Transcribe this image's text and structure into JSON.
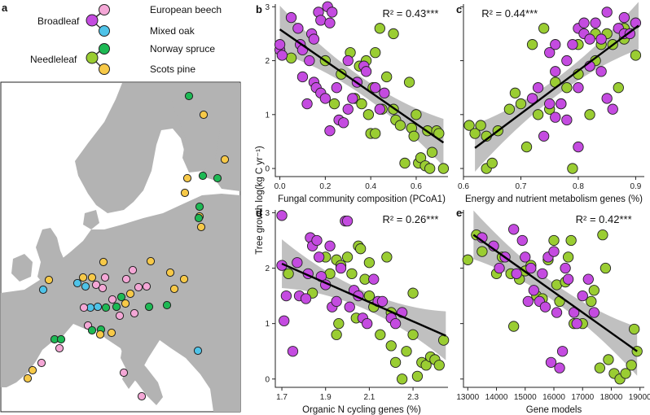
{
  "colors": {
    "european_beech": "#f4a7d6",
    "mixed_oak": "#4fc3e8",
    "norway_spruce": "#1db954",
    "scots_pine": "#f7c948",
    "purple_points": "#c44be0",
    "green_points": "#9acd32",
    "land": "#b3b3b3",
    "sea": "#ffffff",
    "ci_band": "#8c8c8c",
    "fit_line": "#000000"
  },
  "panel_a": {
    "label": "a",
    "legend": {
      "broadleaf": "Broadleaf",
      "needleleaf": "Needleleaf",
      "species": [
        "European beech",
        "Mixed oak",
        "Norway spruce",
        "Scots pine"
      ]
    }
  },
  "shared": {
    "ylabel": "Tree growth log(kg C yr⁻¹)"
  },
  "chart_data": [
    {
      "panel": "b",
      "type": "scatter",
      "xlabel": "Fungal community composition (PCoA1)",
      "r2_text": "R² = 0.43***",
      "xlim": [
        -0.02,
        0.74
      ],
      "ylim": [
        -0.15,
        3.05
      ],
      "xticks": [
        "0.0",
        "0.2",
        "0.4",
        "0.6"
      ],
      "xtick_vals": [
        0.0,
        0.2,
        0.4,
        0.6
      ],
      "yticks": [
        "0",
        "1",
        "2",
        "3"
      ],
      "ytick_vals": [
        0,
        1,
        2,
        3
      ],
      "fit": {
        "x": [
          0.0,
          0.72
        ],
        "y": [
          2.58,
          0.48
        ]
      },
      "points_purple": [
        [
          0.0,
          2.2
        ],
        [
          0.0,
          2.3
        ],
        [
          0.01,
          2.1
        ],
        [
          0.05,
          2.8
        ],
        [
          0.08,
          2.6
        ],
        [
          0.09,
          2.3
        ],
        [
          0.1,
          2.2
        ],
        [
          0.1,
          1.7
        ],
        [
          0.12,
          1.2
        ],
        [
          0.13,
          2.0
        ],
        [
          0.14,
          2.5
        ],
        [
          0.15,
          2.4
        ],
        [
          0.15,
          1.6
        ],
        [
          0.16,
          1.5
        ],
        [
          0.17,
          2.9
        ],
        [
          0.18,
          2.75
        ],
        [
          0.18,
          1.4
        ],
        [
          0.2,
          1.3
        ],
        [
          0.21,
          3.0
        ],
        [
          0.22,
          2.7
        ],
        [
          0.23,
          2.9
        ],
        [
          0.22,
          0.7
        ],
        [
          0.25,
          1.5
        ],
        [
          0.26,
          0.9
        ],
        [
          0.28,
          0.85
        ],
        [
          0.3,
          2.0
        ],
        [
          0.3,
          1.1
        ],
        [
          0.32,
          1.3
        ],
        [
          0.34,
          1.6
        ],
        [
          0.37,
          1.9
        ],
        [
          0.38,
          1.8
        ],
        [
          0.42,
          1.5
        ],
        [
          0.44,
          1.1
        ],
        [
          0.46,
          1.4
        ]
      ],
      "points_green": [
        [
          0.05,
          2.05
        ],
        [
          0.2,
          2.0
        ],
        [
          0.24,
          1.2
        ],
        [
          0.27,
          1.75
        ],
        [
          0.31,
          2.15
        ],
        [
          0.33,
          1.3
        ],
        [
          0.35,
          1.9
        ],
        [
          0.36,
          1.2
        ],
        [
          0.38,
          2.0
        ],
        [
          0.39,
          1.0
        ],
        [
          0.4,
          0.65
        ],
        [
          0.41,
          1.5
        ],
        [
          0.42,
          2.15
        ],
        [
          0.42,
          0.65
        ],
        [
          0.44,
          2.6
        ],
        [
          0.45,
          1.1
        ],
        [
          0.47,
          1.7
        ],
        [
          0.5,
          2.5
        ],
        [
          0.5,
          1.1
        ],
        [
          0.51,
          0.9
        ],
        [
          0.53,
          0.8
        ],
        [
          0.55,
          0.1
        ],
        [
          0.57,
          1.6
        ],
        [
          0.58,
          0.75
        ],
        [
          0.59,
          0.6
        ],
        [
          0.6,
          1.0
        ],
        [
          0.61,
          0.1
        ],
        [
          0.62,
          0.2
        ],
        [
          0.64,
          0.05
        ],
        [
          0.65,
          0.7
        ],
        [
          0.66,
          0.0
        ],
        [
          0.67,
          0.3
        ],
        [
          0.69,
          0.7
        ],
        [
          0.7,
          0.65
        ],
        [
          0.72,
          0.0
        ]
      ]
    },
    {
      "panel": "c",
      "type": "scatter",
      "xlabel": "Energy and nutrient metabolism genes (%)",
      "r2_text": "R² = 0.44***",
      "xlim": [
        0.6,
        0.915
      ],
      "ylim": [
        -0.15,
        3.05
      ],
      "xticks": [
        "0.6",
        "0.7",
        "0.8",
        "0.9"
      ],
      "xtick_vals": [
        0.6,
        0.7,
        0.8,
        0.9
      ],
      "yticks": [],
      "ytick_vals": [
        0,
        1,
        2,
        3
      ],
      "fit": {
        "x": [
          0.62,
          0.905
        ],
        "y": [
          0.38,
          2.65
        ]
      },
      "points_purple": [
        [
          0.72,
          1.3
        ],
        [
          0.73,
          1.5
        ],
        [
          0.74,
          0.6
        ],
        [
          0.75,
          1.2
        ],
        [
          0.75,
          2.15
        ],
        [
          0.76,
          0.95
        ],
        [
          0.76,
          1.8
        ],
        [
          0.76,
          2.3
        ],
        [
          0.77,
          1.2
        ],
        [
          0.78,
          2.0
        ],
        [
          0.78,
          0.9
        ],
        [
          0.79,
          2.3
        ],
        [
          0.8,
          1.5
        ],
        [
          0.8,
          0.4
        ],
        [
          0.8,
          2.6
        ],
        [
          0.81,
          2.7
        ],
        [
          0.81,
          2.5
        ],
        [
          0.82,
          2.4
        ],
        [
          0.82,
          1.9
        ],
        [
          0.83,
          2.7
        ],
        [
          0.84,
          1.8
        ],
        [
          0.84,
          2.4
        ],
        [
          0.85,
          2.9
        ],
        [
          0.85,
          1.3
        ],
        [
          0.86,
          1.1
        ],
        [
          0.87,
          2.6
        ],
        [
          0.88,
          2.5
        ],
        [
          0.88,
          2.8
        ],
        [
          0.89,
          2.5
        ],
        [
          0.9,
          2.7
        ]
      ],
      "points_green": [
        [
          0.61,
          0.8
        ],
        [
          0.62,
          0.65
        ],
        [
          0.63,
          0.8
        ],
        [
          0.64,
          0.0
        ],
        [
          0.64,
          0.6
        ],
        [
          0.65,
          0.1
        ],
        [
          0.66,
          0.7
        ],
        [
          0.68,
          1.1
        ],
        [
          0.69,
          1.4
        ],
        [
          0.7,
          1.2
        ],
        [
          0.71,
          0.4
        ],
        [
          0.72,
          2.3
        ],
        [
          0.73,
          1.0
        ],
        [
          0.74,
          2.6
        ],
        [
          0.75,
          1.1
        ],
        [
          0.76,
          1.6
        ],
        [
          0.77,
          1.2
        ],
        [
          0.78,
          1.5
        ],
        [
          0.79,
          0.0
        ],
        [
          0.8,
          1.75
        ],
        [
          0.8,
          2.3
        ],
        [
          0.82,
          1.0
        ],
        [
          0.83,
          2.5
        ],
        [
          0.83,
          2.0
        ],
        [
          0.84,
          2.3
        ],
        [
          0.85,
          2.5
        ],
        [
          0.86,
          2.3
        ],
        [
          0.87,
          1.5
        ],
        [
          0.88,
          2.6
        ],
        [
          0.88,
          2.4
        ],
        [
          0.9,
          2.1
        ]
      ]
    },
    {
      "panel": "d",
      "type": "scatter",
      "xlabel": "Organic N cycling genes (%)",
      "r2_text": "R² = 0.26***",
      "xlim": [
        1.67,
        2.46
      ],
      "ylim": [
        -0.15,
        3.05
      ],
      "xticks": [
        "1.7",
        "1.9",
        "2.1",
        "2.3"
      ],
      "xtick_vals": [
        1.7,
        1.9,
        2.1,
        2.3
      ],
      "yticks": [
        "0",
        "1",
        "2",
        "3"
      ],
      "ytick_vals": [
        0,
        1,
        2,
        3
      ],
      "fit": {
        "x": [
          1.7,
          2.45
        ],
        "y": [
          2.08,
          0.78
        ]
      },
      "points_purple": [
        [
          1.7,
          2.95
        ],
        [
          1.7,
          2.05
        ],
        [
          1.71,
          1.05
        ],
        [
          1.72,
          1.5
        ],
        [
          1.75,
          0.5
        ],
        [
          1.77,
          2.1
        ],
        [
          1.78,
          1.5
        ],
        [
          1.81,
          1.45
        ],
        [
          1.82,
          1.9
        ],
        [
          1.83,
          2.55
        ],
        [
          1.84,
          2.4
        ],
        [
          1.86,
          2.5
        ],
        [
          1.87,
          2.2
        ],
        [
          1.88,
          1.85
        ],
        [
          1.9,
          1.7
        ],
        [
          1.92,
          2.4
        ],
        [
          1.93,
          1.3
        ],
        [
          1.95,
          1.4
        ],
        [
          1.97,
          2.0
        ],
        [
          1.99,
          2.85
        ],
        [
          2.0,
          2.85
        ],
        [
          2.01,
          1.3
        ],
        [
          2.03,
          1.6
        ],
        [
          2.05,
          1.5
        ],
        [
          2.07,
          1.1
        ],
        [
          2.09,
          1.0
        ],
        [
          2.12,
          1.8
        ],
        [
          2.14,
          1.4
        ],
        [
          2.16,
          1.4
        ],
        [
          2.2,
          1.1
        ],
        [
          2.22,
          1.0
        ],
        [
          2.25,
          1.2
        ]
      ],
      "points_green": [
        [
          1.73,
          1.9
        ],
        [
          1.84,
          1.55
        ],
        [
          1.9,
          2.2
        ],
        [
          1.92,
          1.9
        ],
        [
          1.95,
          2.15
        ],
        [
          1.95,
          0.8
        ],
        [
          1.96,
          1.0
        ],
        [
          1.97,
          2.05
        ],
        [
          2.0,
          2.2
        ],
        [
          2.02,
          1.9
        ],
        [
          2.04,
          1.1
        ],
        [
          2.05,
          2.4
        ],
        [
          2.06,
          2.35
        ],
        [
          2.08,
          1.8
        ],
        [
          2.1,
          1.5
        ],
        [
          2.1,
          2.1
        ],
        [
          2.12,
          1.3
        ],
        [
          2.15,
          0.8
        ],
        [
          2.18,
          2.2
        ],
        [
          2.2,
          0.6
        ],
        [
          2.2,
          1.2
        ],
        [
          2.22,
          0.3
        ],
        [
          2.25,
          0.0
        ],
        [
          2.27,
          0.5
        ],
        [
          2.3,
          0.8
        ],
        [
          2.3,
          1.55
        ],
        [
          2.32,
          0.05
        ],
        [
          2.34,
          0.3
        ],
        [
          2.36,
          0.25
        ],
        [
          2.38,
          0.4
        ],
        [
          2.4,
          0.35
        ],
        [
          2.42,
          0.25
        ],
        [
          2.44,
          0.7
        ]
      ]
    },
    {
      "panel": "e",
      "type": "scatter",
      "xlabel": "Gene models",
      "r2_text": "R² = 0.42***",
      "xlim": [
        12850,
        19150
      ],
      "ylim": [
        -0.15,
        3.05
      ],
      "xticks": [
        "13000",
        "14000",
        "15000",
        "16000",
        "17000",
        "18000",
        "19000"
      ],
      "xtick_vals": [
        13000,
        14000,
        15000,
        16000,
        17000,
        18000,
        19000
      ],
      "yticks": [],
      "ytick_vals": [
        0,
        1,
        2,
        3
      ],
      "fit": {
        "x": [
          13200,
          18900
        ],
        "y": [
          2.6,
          0.5
        ]
      },
      "points_purple": [
        [
          13500,
          2.55
        ],
        [
          13900,
          2.4
        ],
        [
          14100,
          2.0
        ],
        [
          14300,
          2.2
        ],
        [
          14600,
          2.7
        ],
        [
          14700,
          1.9
        ],
        [
          14900,
          2.5
        ],
        [
          15000,
          2.2
        ],
        [
          15100,
          1.4
        ],
        [
          15200,
          2.0
        ],
        [
          15300,
          1.6
        ],
        [
          15500,
          1.4
        ],
        [
          15600,
          1.9
        ],
        [
          15700,
          1.3
        ],
        [
          15800,
          2.2
        ],
        [
          15900,
          0.3
        ],
        [
          16000,
          2.3
        ],
        [
          16100,
          1.2
        ],
        [
          16200,
          0.2
        ],
        [
          16300,
          0.5
        ],
        [
          16400,
          2.0
        ],
        [
          16500,
          1.8
        ],
        [
          16700,
          1.2
        ],
        [
          16800,
          1.0
        ],
        [
          17000,
          1.5
        ],
        [
          17200,
          1.8
        ],
        [
          17400,
          1.2
        ]
      ],
      "points_green": [
        [
          13000,
          2.15
        ],
        [
          13300,
          2.6
        ],
        [
          13500,
          2.3
        ],
        [
          14000,
          1.9
        ],
        [
          14200,
          2.2
        ],
        [
          14500,
          1.9
        ],
        [
          14600,
          0.95
        ],
        [
          14800,
          1.8
        ],
        [
          15000,
          1.95
        ],
        [
          15200,
          2.05
        ],
        [
          15400,
          1.5
        ],
        [
          15600,
          1.45
        ],
        [
          15800,
          2.15
        ],
        [
          16000,
          2.5
        ],
        [
          16100,
          1.7
        ],
        [
          16200,
          1.4
        ],
        [
          16400,
          1.75
        ],
        [
          16500,
          2.2
        ],
        [
          16600,
          2.5
        ],
        [
          16700,
          1.0
        ],
        [
          17000,
          1.0
        ],
        [
          17300,
          1.4
        ],
        [
          17400,
          1.6
        ],
        [
          17600,
          0.2
        ],
        [
          17700,
          2.6
        ],
        [
          17800,
          2.0
        ],
        [
          17900,
          0.35
        ],
        [
          18100,
          0.1
        ],
        [
          18300,
          0.0
        ],
        [
          18500,
          0.1
        ],
        [
          18700,
          0.25
        ],
        [
          18800,
          0.9
        ],
        [
          18900,
          0.5
        ]
      ]
    }
  ]
}
